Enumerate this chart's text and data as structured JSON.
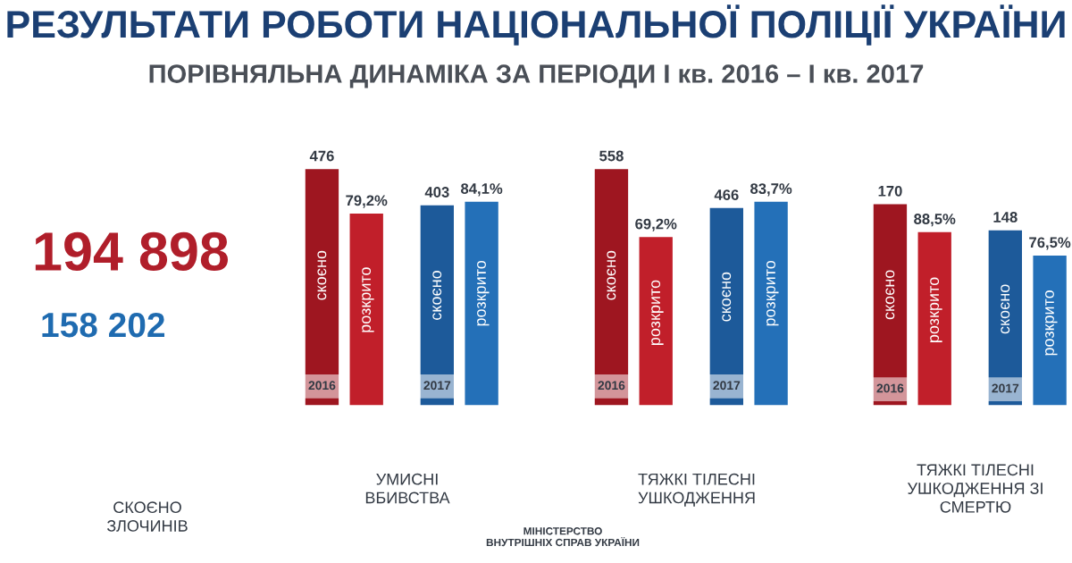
{
  "chart_data": [
    {
      "type": "other",
      "title": "РЕЗУЛЬТАТИ РОБОТИ НАЦІОНАЛЬНОЇ ПОЛІЦІЇ УКРАЇНИ",
      "subtitle": "ПОРІВНЯЛЬНА ДИНАМІКА ЗА ПЕРІОДИ I кв. 2016 – I кв. 2017",
      "xlabel": "СКОЄНО\nЗЛОЧИНІВ",
      "colors": [
        "#b01e2a",
        "#1f6bb0"
      ],
      "annotations": [
        "194 898",
        "158 202",
        "МІНІСТЕРСТВО\nВНУТРІШНІХ СПРАВ УКРАЇНИ"
      ]
    },
    {
      "type": "bar",
      "title": "УМИСНІ\nВБИВСТВА",
      "categories": [
        "2016",
        "2017"
      ],
      "series": [
        {
          "name": "скоєно",
          "colors": [
            "#9e1620",
            "#1d5a9a"
          ],
          "values": [
            476,
            403
          ],
          "value_labels": [
            "476",
            "403"
          ]
        },
        {
          "name": "розкрито",
          "colors": [
            "#c11f2a",
            "#2470b8"
          ],
          "axis": "y2",
          "values": [
            79.2,
            84.1
          ],
          "value_labels": [
            "79,2%",
            "84,1%"
          ]
        }
      ]
    },
    {
      "type": "bar",
      "title": "ТЯЖКІ ТІЛЕСНІ\nУШКОДЖЕННЯ",
      "categories": [
        "2016",
        "2017"
      ],
      "series": [
        {
          "name": "скоєно",
          "colors": [
            "#9e1620",
            "#1d5a9a"
          ],
          "values": [
            558,
            466
          ],
          "value_labels": [
            "558",
            "466"
          ]
        },
        {
          "name": "розкрито",
          "colors": [
            "#c11f2a",
            "#2470b8"
          ],
          "axis": "y2",
          "values": [
            69.2,
            83.7
          ],
          "value_labels": [
            "69,2%",
            "83,7%"
          ]
        }
      ]
    },
    {
      "type": "bar",
      "title": "ТЯЖКІ ТІЛЕСНІ\nУШКОДЖЕННЯ ЗІ\nСМЕРТЮ",
      "categories": [
        "2016",
        "2017"
      ],
      "series": [
        {
          "name": "скоєно",
          "colors": [
            "#9e1620",
            "#1d5a9a"
          ],
          "values": [
            170,
            148
          ],
          "value_labels": [
            "170",
            "148"
          ]
        },
        {
          "name": "розкрито",
          "colors": [
            "#c11f2a",
            "#2470b8"
          ],
          "axis": "y2",
          "values": [
            88.5,
            76.5
          ],
          "value_labels": [
            "88,5%",
            "76,5%"
          ]
        }
      ]
    }
  ]
}
